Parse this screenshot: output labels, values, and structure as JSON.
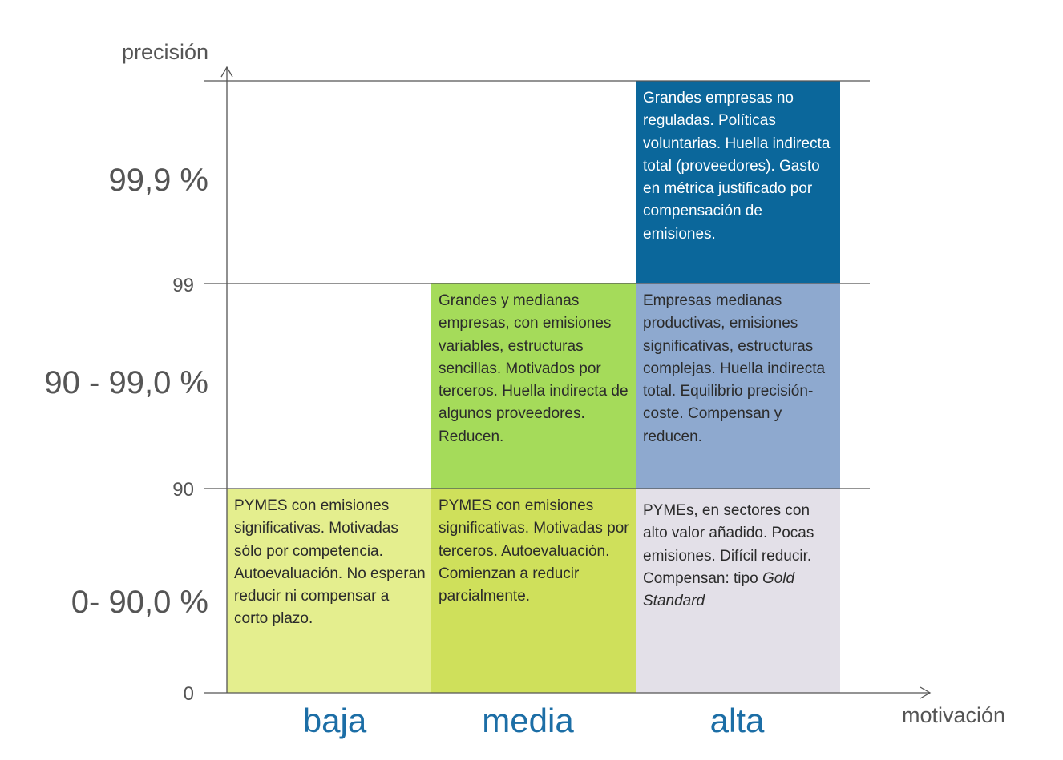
{
  "axes": {
    "y_label": "precisión",
    "x_label": "motivación"
  },
  "rows": [
    {
      "label": "99,9 %"
    },
    {
      "label": "90 - 99,0 %"
    },
    {
      "label": "0- 90,0 %"
    }
  ],
  "ticks": [
    "99",
    "90",
    "0"
  ],
  "columns": [
    "baja",
    "media",
    "alta"
  ],
  "cells": [
    {
      "text": "Grandes empresas no reguladas. Políticas voluntarias. Huella indirecta total (proveedores). Gasto en métrica justificado por compensación de emisiones."
    },
    {
      "text": "Grandes y medianas empresas, con emisiones variables, estructuras sencillas. Motivados por terceros. Huella indirecta de algunos proveedores.  Reducen."
    },
    {
      "text": "Empresas medianas productivas, emisiones significativas, estructuras complejas. Huella indirecta total. Equilibrio precisión-coste. Compensan y reducen."
    },
    {
      "text": "PYMES con emisiones significativas. Motivadas sólo por competencia. Autoevaluación. No esperan reducir ni compensar a corto plazo."
    },
    {
      "text": "PYMES con emisiones significativas. Motivadas por terceros. Autoevaluación. Comienzan a reducir parcialmente."
    },
    {
      "text": "PYMEs, en sectores con alto valor añadido. Pocas emisiones.  Difícil reducir. Compensan: tipo",
      "emphasis": "Gold Standard"
    }
  ]
}
